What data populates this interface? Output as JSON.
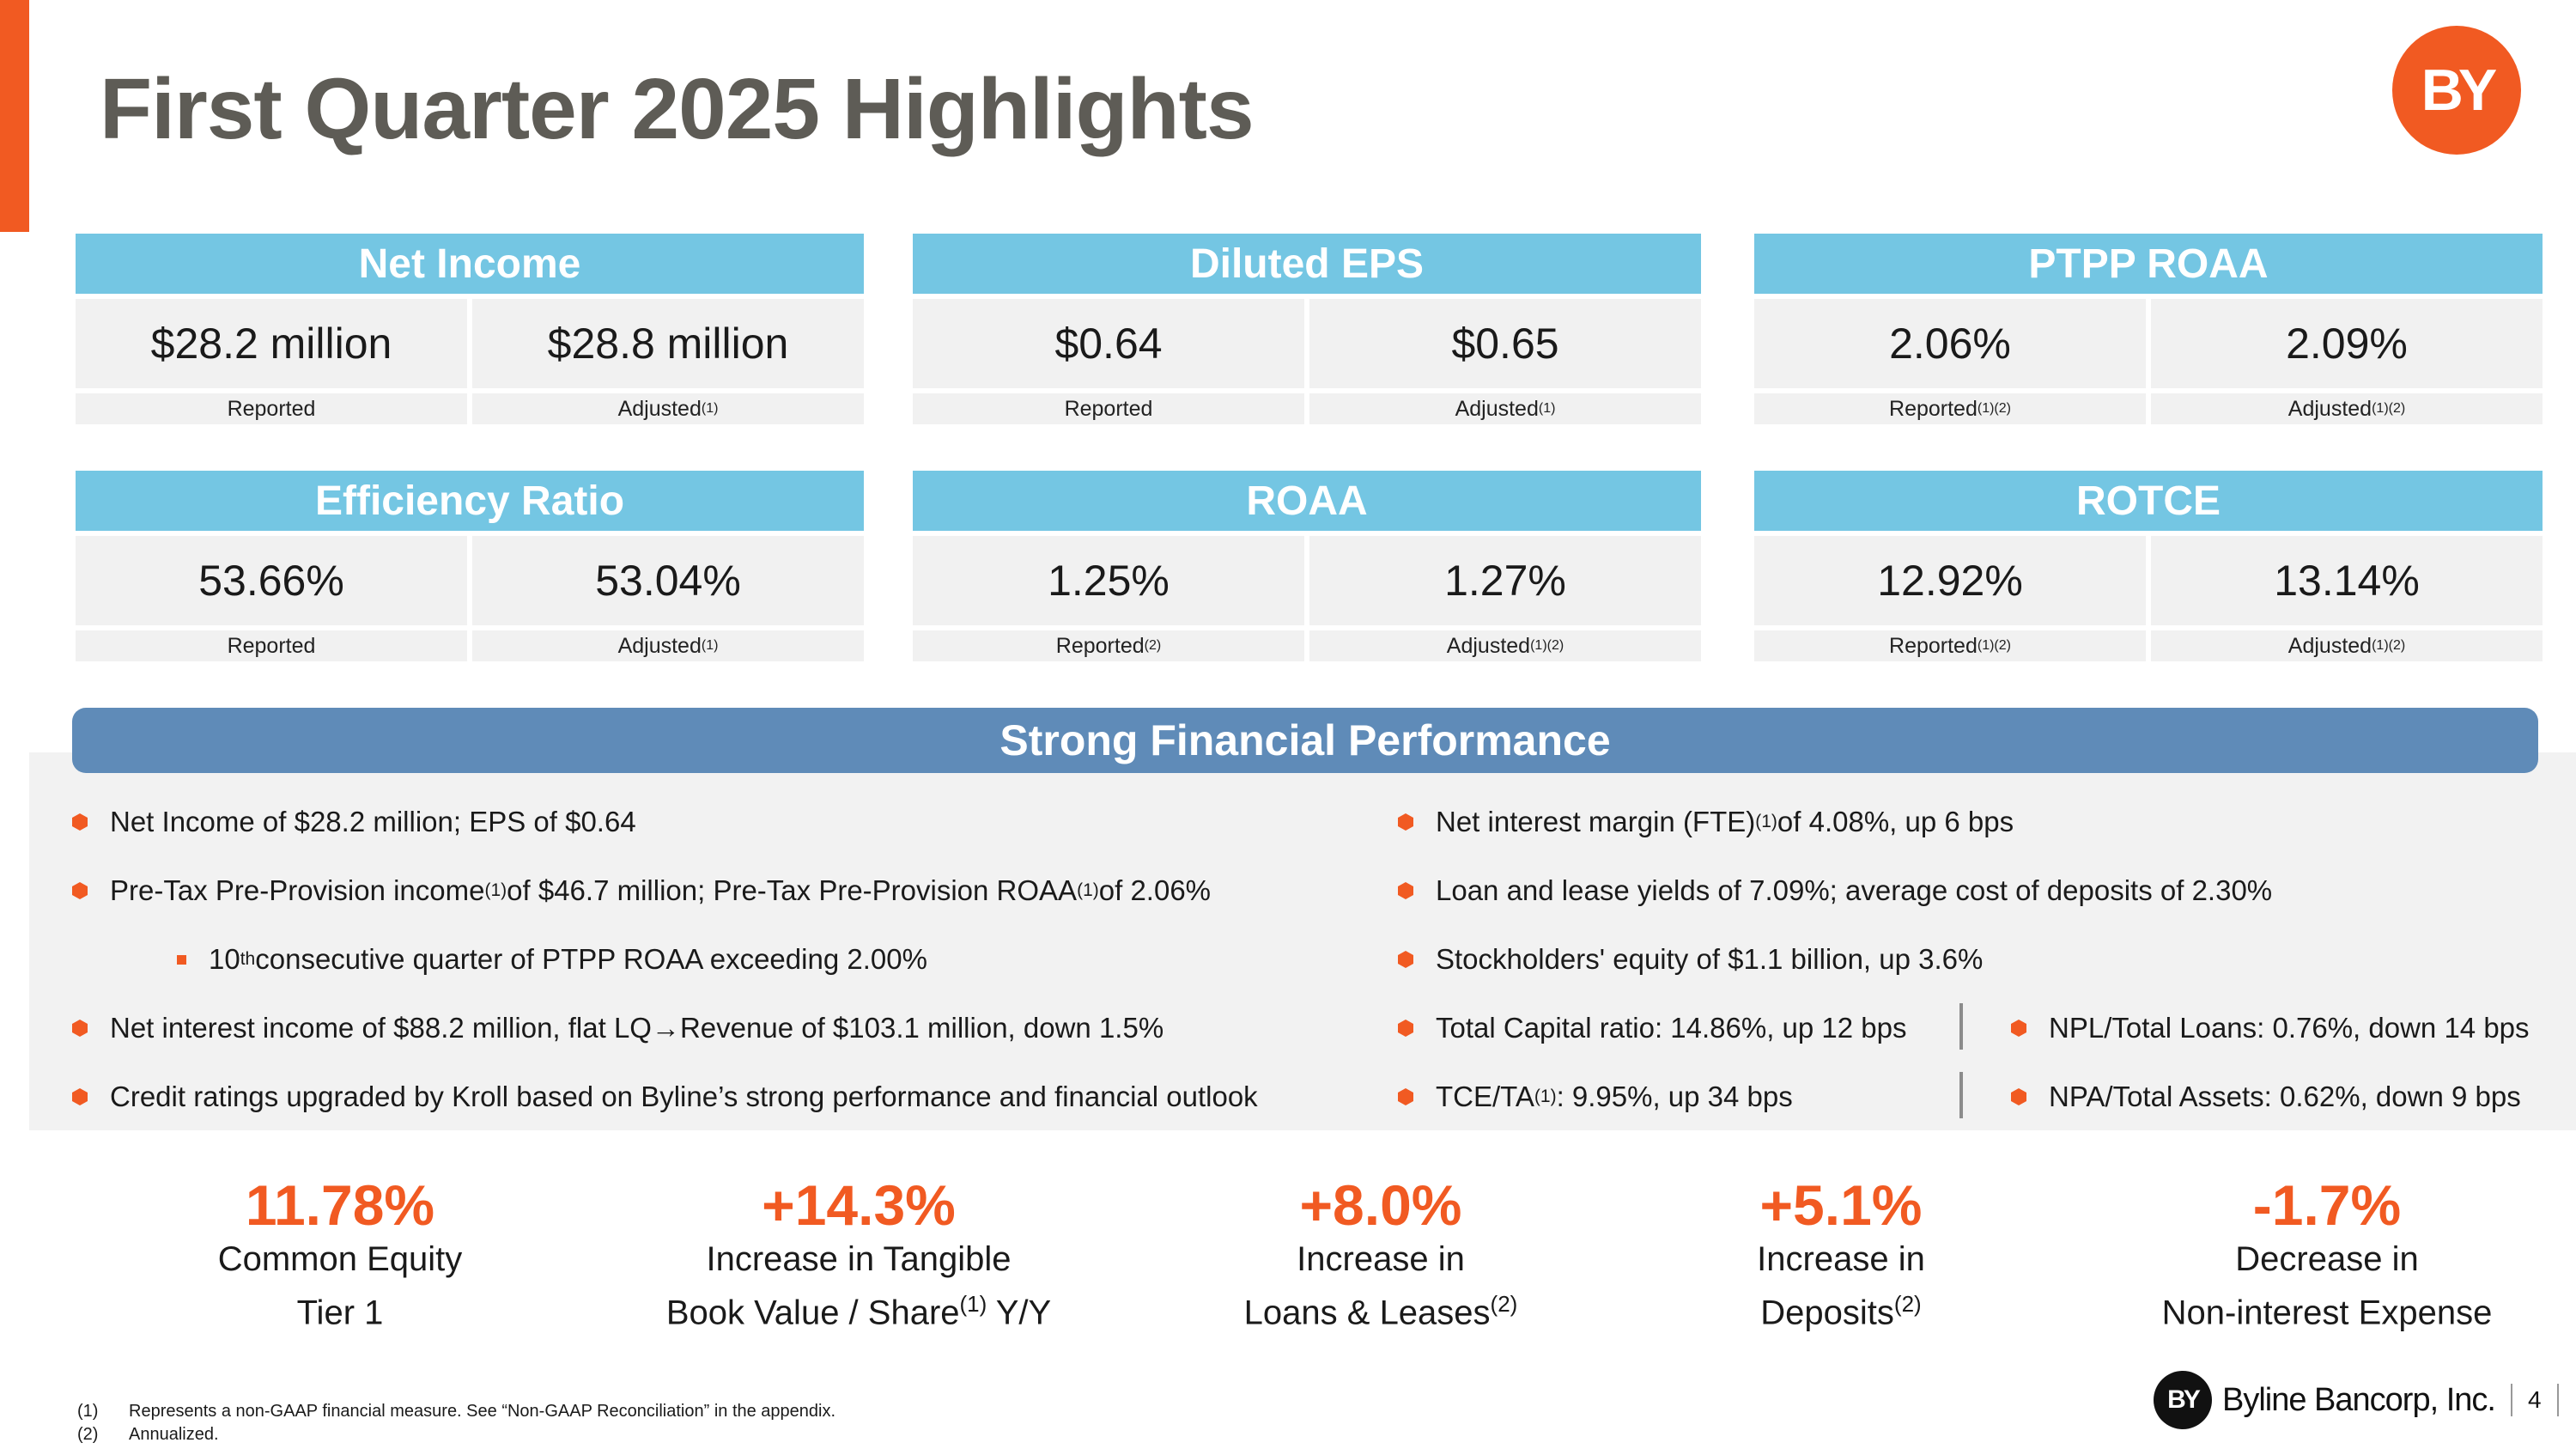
{
  "title": "First Quarter 2025 Highlights",
  "logo_text": "BY",
  "brand": {
    "logo_text": "BY",
    "name": "Byline Bancorp, Inc.",
    "page_number": "4"
  },
  "colors": {
    "accent": "#f15a22",
    "header_blue": "#74c6e3",
    "banner_blue": "#5f8bb8",
    "title_gray": "#5e5c56"
  },
  "metrics": [
    {
      "title": "Net Income",
      "reported": "$28.2 million",
      "adjusted": "$28.8 million",
      "reported_label": "Reported",
      "reported_sup": "",
      "adjusted_label": "Adjusted",
      "adjusted_sup": "(1)"
    },
    {
      "title": "Diluted EPS",
      "reported": "$0.64",
      "adjusted": "$0.65",
      "reported_label": "Reported",
      "reported_sup": "",
      "adjusted_label": "Adjusted",
      "adjusted_sup": "(1)"
    },
    {
      "title": "PTPP ROAA",
      "reported": "2.06%",
      "adjusted": "2.09%",
      "reported_label": "Reported",
      "reported_sup": "(1)(2)",
      "adjusted_label": "Adjusted",
      "adjusted_sup": "(1)(2)"
    },
    {
      "title": "Efficiency Ratio",
      "reported": "53.66%",
      "adjusted": "53.04%",
      "reported_label": "Reported",
      "reported_sup": "",
      "adjusted_label": "Adjusted",
      "adjusted_sup": "(1)"
    },
    {
      "title": "ROAA",
      "reported": "1.25%",
      "adjusted": "1.27%",
      "reported_label": "Reported",
      "reported_sup": "(2)",
      "adjusted_label": "Adjusted",
      "adjusted_sup": "(1)(2)"
    },
    {
      "title": "ROTCE",
      "reported": "12.92%",
      "adjusted": "13.14%",
      "reported_label": "Reported",
      "reported_sup": "(1)(2)",
      "adjusted_label": "Adjusted",
      "adjusted_sup": "(1)(2)"
    }
  ],
  "banner": "Strong Financial Performance",
  "left_bullets": {
    "b1": "Net Income of $28.2 million; EPS of $0.64",
    "b2_a": "Pre-Tax Pre-Provision income ",
    "b2_sup1": "(1)",
    "b2_b": " of $46.7 million; Pre-Tax Pre-Provision ROAA",
    "b2_sup2": "(1)",
    "b2_c": " of 2.06%",
    "b3_a": "10",
    "b3_sup": "th",
    "b3_b": " consecutive quarter of PTPP ROAA exceeding 2.00%",
    "b4_a": "Net interest income of $88.2 million, flat LQ ",
    "b4_arrow": "→",
    "b4_b": " Revenue of $103.1 million, down 1.5%",
    "b5": "Credit ratings upgraded by Kroll based on Byline’s strong performance and financial outlook"
  },
  "right_bullets": {
    "r1_a": "Net interest margin (FTE)",
    "r1_sup": "(1)",
    "r1_b": " of 4.08%, up 6 bps",
    "r2": "Loan and lease yields of 7.09%; average cost of deposits of 2.30%",
    "r3": "Stockholders' equity of $1.1 billion, up 3.6%",
    "r4": "Total Capital ratio: 14.86%, up 12 bps",
    "r4_right": "NPL/Total Loans: 0.76%, down 14 bps",
    "r5_a": "TCE/TA",
    "r5_sup": "(1)",
    "r5_b": ": 9.95%, up 34 bps",
    "r5_right": "NPA/Total Assets: 0.62%, down 9 bps"
  },
  "stats": [
    {
      "value": "11.78%",
      "line1": "Common Equity",
      "line2": "Tier 1",
      "sup": "",
      "line2_suffix": ""
    },
    {
      "value": "+14.3%",
      "line1": "Increase in Tangible",
      "line2": "Book Value / Share",
      "sup": "(1)",
      "line2_suffix": " Y/Y"
    },
    {
      "value": "+8.0%",
      "line1": "Increase in",
      "line2": "Loans & Leases",
      "sup": "(2)",
      "line2_suffix": ""
    },
    {
      "value": "+5.1%",
      "line1": "Increase in",
      "line2": "Deposits",
      "sup": "(2)",
      "line2_suffix": ""
    },
    {
      "value": "-1.7%",
      "line1": "Decrease in",
      "line2": "Non-interest Expense",
      "sup": "",
      "line2_suffix": ""
    }
  ],
  "footnotes": [
    {
      "num": "(1)",
      "text": "Represents a non-GAAP financial measure.  See “Non-GAAP Reconciliation” in the appendix."
    },
    {
      "num": "(2)",
      "text": "Annualized."
    }
  ]
}
